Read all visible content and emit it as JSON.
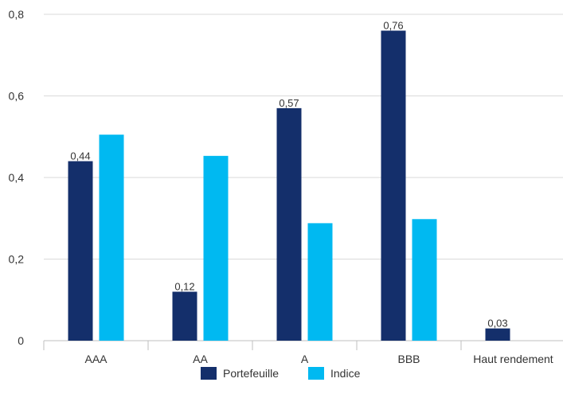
{
  "chart_data": {
    "type": "bar",
    "title": "",
    "xlabel": "",
    "ylabel": "",
    "categories": [
      "AAA",
      "AA",
      "A",
      "BBB",
      "Haut rendement"
    ],
    "series": [
      {
        "name": "Portefeuille",
        "color": "#142f6b",
        "values": [
          0.44,
          0.12,
          0.57,
          0.76,
          0.03
        ],
        "labels": [
          "0,44",
          "0,12",
          "0,57",
          "0,76",
          "0,03"
        ]
      },
      {
        "name": "Indice",
        "color": "#00b9f1",
        "values": [
          0.505,
          0.453,
          0.288,
          0.298,
          null
        ],
        "labels": null
      }
    ],
    "ylim": [
      0,
      0.8
    ],
    "yticks": [
      0,
      0.2,
      0.4,
      0.6,
      0.8
    ],
    "ytick_labels": [
      "0",
      "0,2",
      "0,4",
      "0,6",
      "0,8"
    ],
    "grid": true,
    "legend_position": "bottom-center"
  }
}
